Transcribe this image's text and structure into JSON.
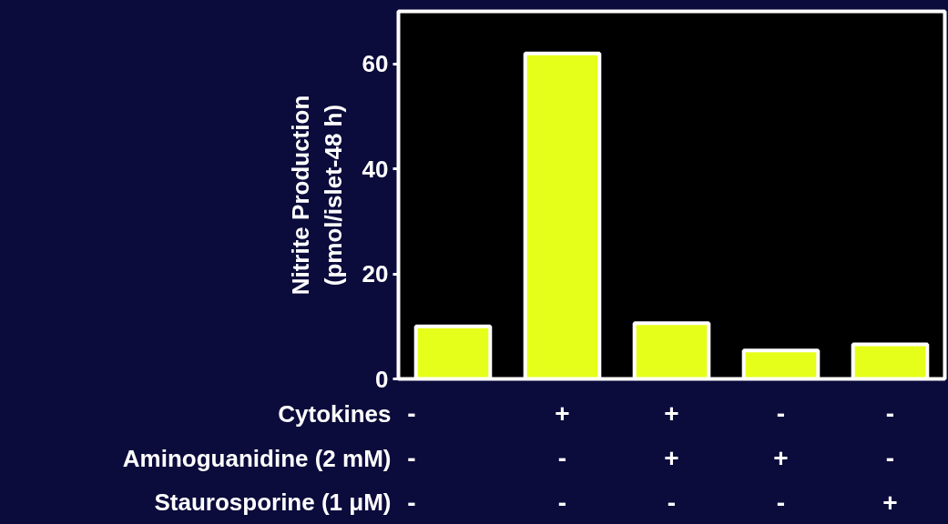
{
  "chart_data": {
    "type": "bar",
    "ylabel": "Nitrite Production\n(pmol/islet-48 h)",
    "categories": [
      "-\n-\n-",
      "+\n-\n-",
      "+\n+\n-",
      "-\n+\n-",
      "-\n-\n+"
    ],
    "values": [
      10,
      62,
      10.6,
      5.4,
      6.6
    ],
    "color": "#e6ff1a",
    "ylim": [
      0,
      70
    ],
    "yticks": [
      0,
      20,
      40,
      60
    ],
    "grid": false,
    "annotations": [
      "Cytokines",
      "Aminoguanidine (2 mM)",
      "Staurosporine (1 μM)"
    ]
  }
}
